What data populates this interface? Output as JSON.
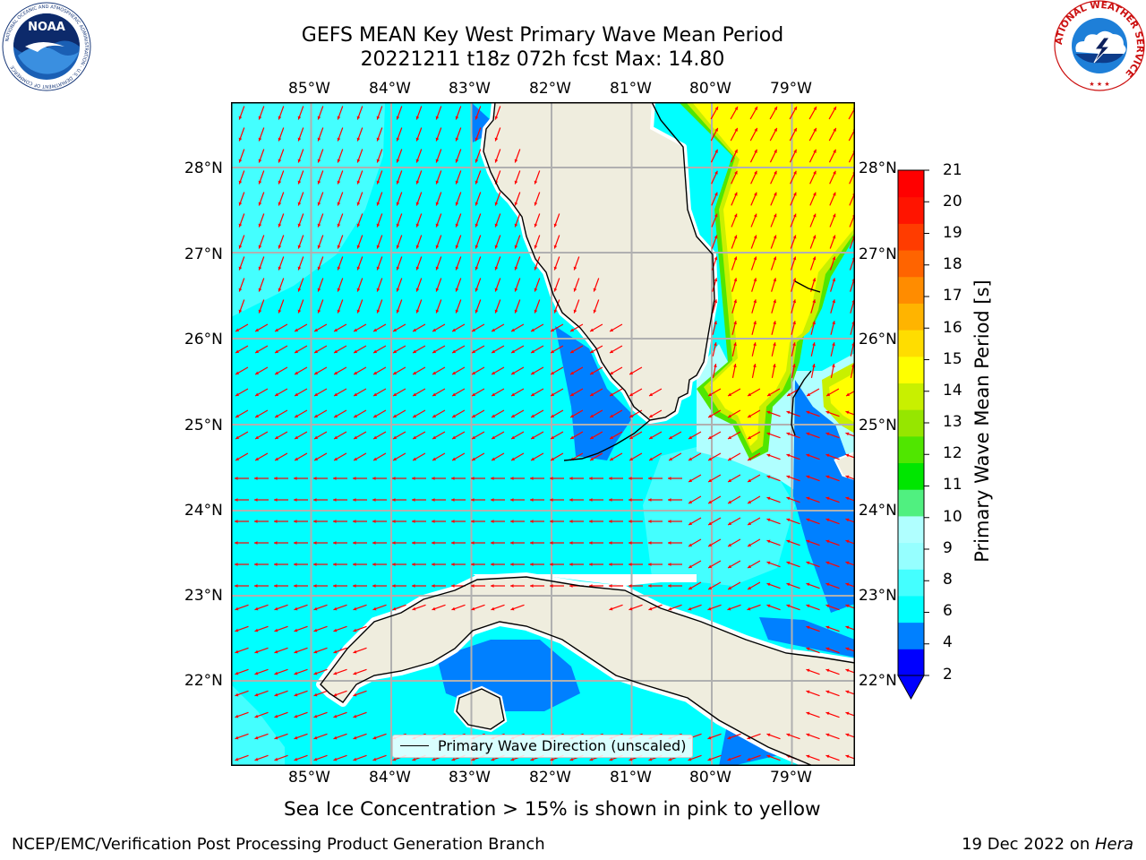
{
  "title": {
    "line1": "GEFS MEAN Key West Primary Wave Mean Period",
    "line2": "20221211 t18z 072h fcst   Max: 14.80"
  },
  "map": {
    "lon_labels": [
      "85°W",
      "84°W",
      "83°W",
      "82°W",
      "81°W",
      "80°W",
      "79°W"
    ],
    "lat_labels": [
      "28°N",
      "27°N",
      "26°N",
      "25°N",
      "24°N",
      "23°N",
      "22°N"
    ],
    "lon_range": [
      -86.0,
      -78.3
    ],
    "lat_range": [
      21.0,
      28.8
    ],
    "grid": true,
    "colors": {
      "land": "#efedde",
      "ocean_shallow": "#0080ff",
      "ocean_4_6": "#00ffff",
      "ocean_6_8": "#44ffff",
      "ocean_8_9": "#b0ffff",
      "band_12_13": "#50e600",
      "band_13_14": "#c8f000",
      "band_14_15": "#ffff00",
      "arrow": "#ff0000",
      "grid": "#b0b0b0"
    },
    "legend": {
      "label": "Primary Wave Direction (unscaled)"
    }
  },
  "colorbar": {
    "label": "Primary Wave Mean Period [s]",
    "ticks": [
      "21",
      "20",
      "19",
      "18",
      "17",
      "16",
      "15",
      "14",
      "13",
      "12",
      "11",
      "10",
      "9",
      "8",
      "6",
      "4",
      "2"
    ],
    "colors": [
      "#0000ff",
      "#0080ff",
      "#00ffff",
      "#44ffff",
      "#96ffff",
      "#b0ffff",
      "#50f080",
      "#00e600",
      "#50e600",
      "#96e600",
      "#c8f000",
      "#ffff00",
      "#ffdd00",
      "#ffb400",
      "#ff8c00",
      "#ff6400",
      "#ff3c00",
      "#ff1400",
      "#ff0000"
    ]
  },
  "logos": {
    "noaa": {
      "text": "NOAA",
      "ring_text": "NATIONAL OCEANIC AND ATMOSPHERIC ADMINISTRATION · U.S. DEPARTMENT OF COMMERCE"
    },
    "nws": {
      "ring_text": "NATIONAL WEATHER SERVICE"
    }
  },
  "sea_ice_note": "Sea Ice Concentration > 15% is shown in pink to yellow",
  "footer": {
    "left": "NCEP/EMC/Verification Post Processing Product Generation Branch",
    "right_prefix": "19 Dec 2022 on ",
    "right_host": "Hera"
  }
}
